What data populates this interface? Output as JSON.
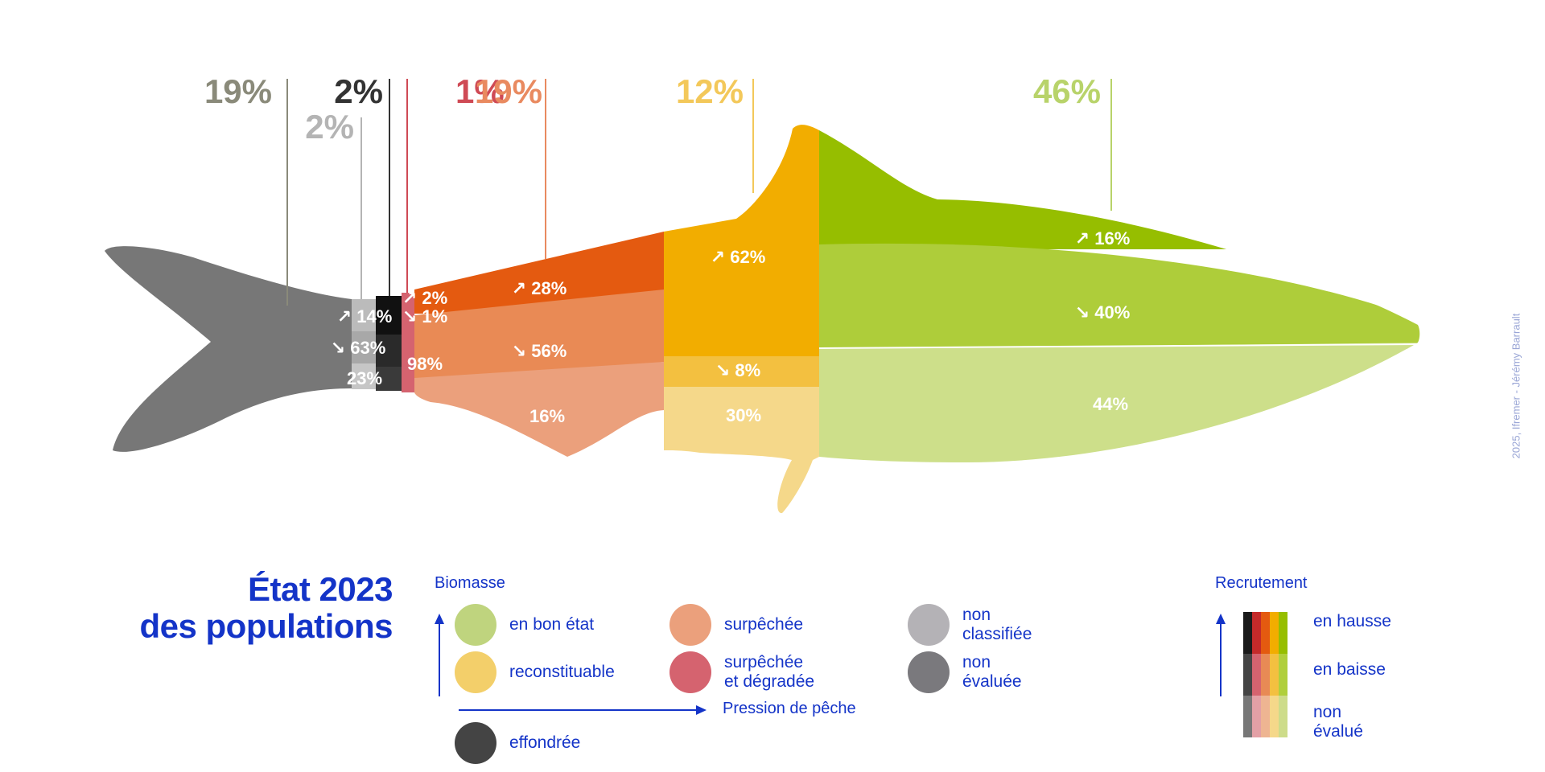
{
  "colors": {
    "non_evaluee": "#777777",
    "non_classifiee": "#b4b4b4",
    "effondree": "#1a1a1a",
    "surpechee_degradee": "#cf5a66",
    "surpechee": "#e45a10",
    "reconstituable": "#f2ad00",
    "bon_etat": "#96be00",
    "title": "#1434c8"
  },
  "chart_data": {
    "type": "stacked-bar",
    "description_style": "fish-shaped segmented bar",
    "segments": [
      {
        "status": "non évaluée",
        "share": 19,
        "share_label": "19%",
        "label_color": "#8a8a7a",
        "recruitment": []
      },
      {
        "status": "non classifiée",
        "share": 2,
        "share_label": "2%",
        "label_color": "#b4b4b4",
        "recruitment": [
          {
            "trend": "en hausse",
            "label": "↗ 14%",
            "value": 14
          },
          {
            "trend": "en baisse",
            "label": "↘ 63%",
            "value": 63
          },
          {
            "trend": "non évalué",
            "label": "23%",
            "value": 23
          }
        ]
      },
      {
        "status": "effondrée",
        "share": 2,
        "share_label": "2%",
        "label_color": "#333333",
        "recruitment": []
      },
      {
        "status": "surpêchée et dégradée",
        "share": 1,
        "share_label": "1%",
        "label_color": "#cf4a55",
        "recruitment": [
          {
            "trend": "en hausse",
            "label": "↗ 2%",
            "value": 2
          },
          {
            "trend": "en baisse",
            "label": "↘ 1%",
            "value": 1
          },
          {
            "trend": "non évalué",
            "label": "98%",
            "value": 98
          }
        ]
      },
      {
        "status": "surpêchée",
        "share": 19,
        "share_label": "19%",
        "label_color": "#e98a60",
        "recruitment": [
          {
            "trend": "en hausse",
            "label": "↗ 28%",
            "value": 28
          },
          {
            "trend": "en baisse",
            "label": "↘ 56%",
            "value": 56
          },
          {
            "trend": "non évalué",
            "label": "16%",
            "value": 16
          }
        ]
      },
      {
        "status": "reconstituable",
        "share": 12,
        "share_label": "12%",
        "label_color": "#f3c85a",
        "recruitment": [
          {
            "trend": "en hausse",
            "label": "↗ 62%",
            "value": 62
          },
          {
            "trend": "en baisse",
            "label": "↘ 8%",
            "value": 8
          },
          {
            "trend": "non évalué",
            "label": "30%",
            "value": 30
          }
        ]
      },
      {
        "status": "en bon état",
        "share": 46,
        "share_label": "46%",
        "label_color": "#b8d36a",
        "recruitment": [
          {
            "trend": "en hausse",
            "label": "↗ 16%",
            "value": 16
          },
          {
            "trend": "en baisse",
            "label": "↘ 40%",
            "value": 40
          },
          {
            "trend": "non évalué",
            "label": "44%",
            "value": 44
          }
        ]
      }
    ]
  },
  "title": {
    "line1": "État 2023",
    "line2": "des populations"
  },
  "legend": {
    "biomasse_title": "Biomasse",
    "pression_label": "Pression de pêche",
    "items": [
      {
        "key": "bon",
        "label": "en bon état",
        "color": "#bfd47e"
      },
      {
        "key": "surpechee",
        "label": "surpêchée",
        "color": "#eba07c"
      },
      {
        "key": "non_classifiee",
        "label": "non\nclassifiée",
        "color": "#b4b2b6"
      },
      {
        "key": "reconstituable",
        "label": "reconstituable",
        "color": "#f3cf6a"
      },
      {
        "key": "surpechee_degradee",
        "label": "surpêchée\net dégradée",
        "color": "#d5636f"
      },
      {
        "key": "non_evaluee",
        "label": "non\névaluée",
        "color": "#7a797d"
      },
      {
        "key": "effondree",
        "label": "effondrée",
        "color": "#444444"
      }
    ],
    "recrutement_title": "Recrutement",
    "recrutement_labels": {
      "hausse": "en hausse",
      "baisse": "en baisse",
      "non": "non\névalué"
    },
    "recrutement_swatches": {
      "top": [
        "#1a1a1a",
        "#c42a2a",
        "#e45a10",
        "#f2ad00",
        "#96be00"
      ],
      "mid": [
        "#444444",
        "#d5636f",
        "#e88a55",
        "#f3c040",
        "#b0cf3c"
      ],
      "bot": [
        "#777777",
        "#e3a0a6",
        "#eeb592",
        "#f5d88a",
        "#cddc8a"
      ]
    }
  },
  "credit": "2025, Ifremer - Jérémy Barrault"
}
